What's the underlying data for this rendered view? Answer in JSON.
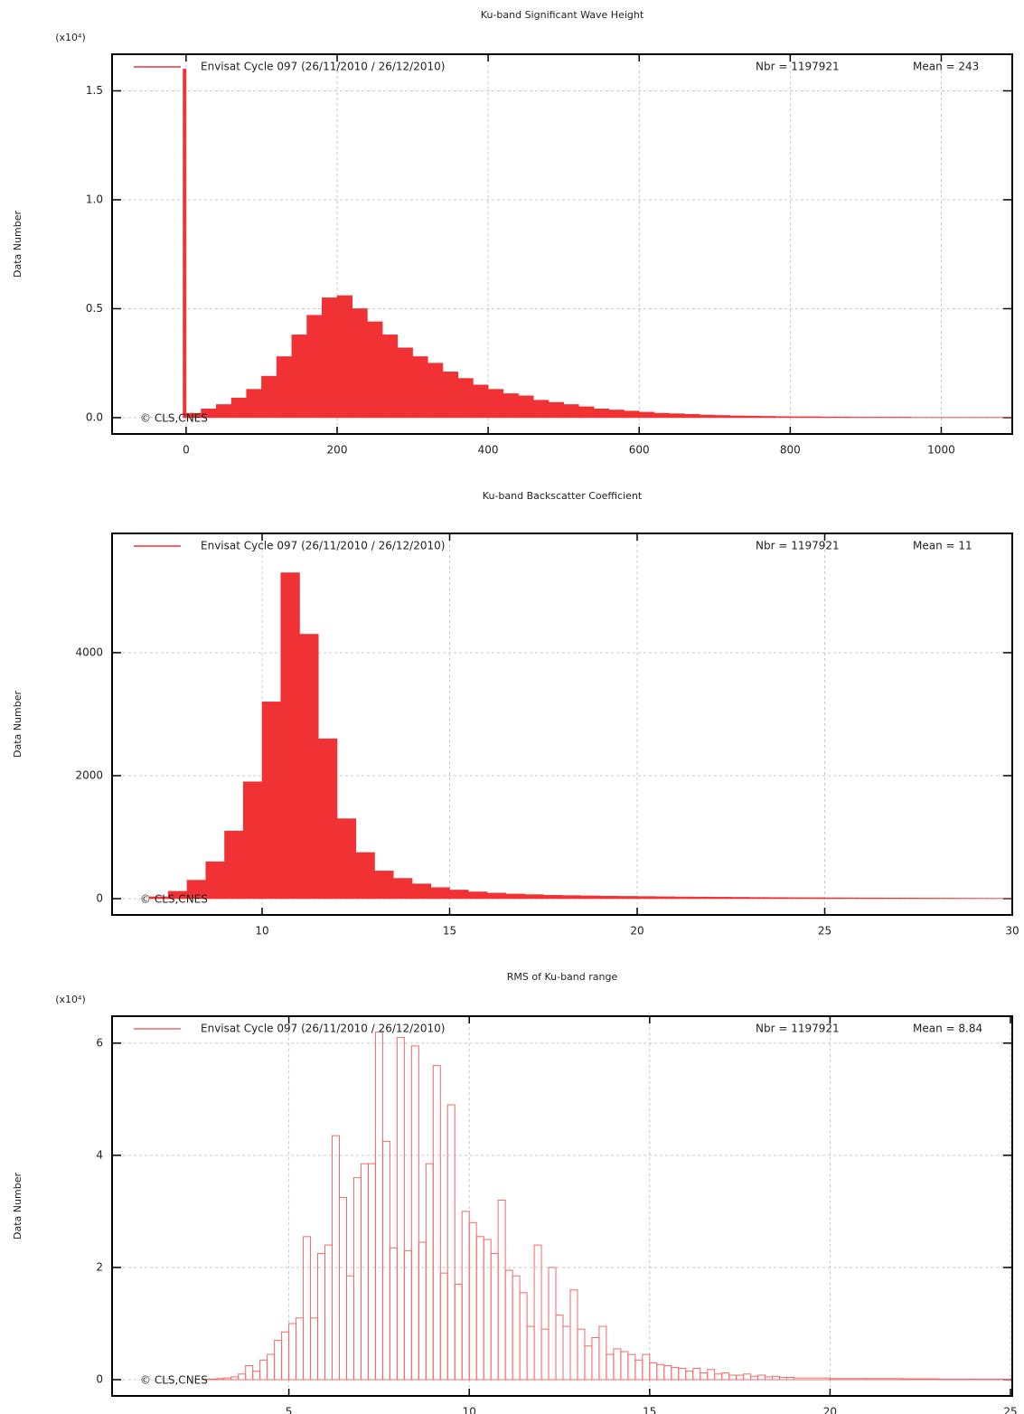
{
  "chart_data": [
    {
      "type": "histogram",
      "title": "Ku-band Significant Wave Height",
      "y_multiplier": "(x10⁴)",
      "ylabel": "Data Number",
      "stats": [
        "Nbr = 1197921",
        "Mean = 243"
      ],
      "credit": "© CLS,CNES",
      "filled": true,
      "grid": true,
      "xlim": [
        -98,
        1094
      ],
      "ylim": [
        -0.075,
        1.668
      ],
      "xticks": [
        0,
        200,
        400,
        600,
        800,
        1000
      ],
      "yticks": [
        {
          "value": 0,
          "label": "0.0"
        },
        0.5,
        {
          "value": 1,
          "label": "1.0"
        },
        1.5
      ],
      "bins": [
        -4,
        0,
        20,
        40,
        60,
        80,
        100,
        120,
        140,
        160,
        180,
        200,
        220,
        240,
        260,
        280,
        300,
        320,
        340,
        360,
        380,
        400,
        420,
        440,
        460,
        480,
        500,
        520,
        540,
        560,
        580,
        600,
        620,
        640,
        660,
        680,
        700,
        720,
        740,
        760,
        780,
        800,
        820,
        840,
        860,
        880,
        900,
        920,
        940,
        960,
        980,
        1000,
        1020,
        1040,
        1060,
        1080,
        1100
      ],
      "series": [
        {
          "name": "Envisat Cycle 097 (26/11/2010 / 26/12/2010)",
          "color": "#f03235",
          "values": [
            1.6,
            0.02,
            0.04,
            0.06,
            0.09,
            0.13,
            0.19,
            0.28,
            0.38,
            0.47,
            0.55,
            0.56,
            0.5,
            0.44,
            0.38,
            0.32,
            0.28,
            0.25,
            0.21,
            0.18,
            0.15,
            0.13,
            0.11,
            0.1,
            0.08,
            0.07,
            0.06,
            0.05,
            0.04,
            0.035,
            0.03,
            0.025,
            0.02,
            0.018,
            0.015,
            0.012,
            0.01,
            0.008,
            0.007,
            0.006,
            0.005,
            0.004,
            0.004,
            0.003,
            0.003,
            0.002,
            0.002,
            0.002,
            0.002,
            0.001,
            0.001,
            0.001,
            0.001,
            0.001,
            0.001,
            0.001
          ]
        }
      ]
    },
    {
      "type": "histogram",
      "title": "Ku-band Backscatter Coefficient",
      "ylabel": "Data Number",
      "stats": [
        "Nbr = 1197921",
        "Mean = 11"
      ],
      "credit": "© CLS,CNES",
      "filled": true,
      "grid": true,
      "xlim": [
        6,
        30
      ],
      "ylim": [
        -265,
        5940
      ],
      "xticks": [
        10,
        15,
        20,
        25,
        30
      ],
      "yticks": [
        0,
        2000,
        4000
      ],
      "bins": [
        7,
        7.5,
        8,
        8.5,
        9,
        9.5,
        10,
        10.5,
        11,
        11.5,
        12,
        12.5,
        13,
        13.5,
        14,
        14.5,
        15,
        15.5,
        16,
        16.5,
        17,
        17.5,
        18,
        18.5,
        19,
        19.5,
        20,
        20.5,
        21,
        21.5,
        22,
        22.5,
        23,
        23.5,
        24,
        24.5,
        25,
        25.5,
        26,
        26.5,
        27,
        27.5,
        28,
        28.5,
        29,
        29.5,
        30
      ],
      "series": [
        {
          "name": "Envisat Cycle 097 (26/11/2010 / 26/12/2010)",
          "color": "#f03235",
          "values": [
            30,
            120,
            300,
            600,
            1100,
            1900,
            3200,
            5300,
            4300,
            2600,
            1300,
            750,
            450,
            330,
            240,
            180,
            140,
            110,
            90,
            75,
            65,
            55,
            50,
            45,
            40,
            37,
            34,
            31,
            28,
            26,
            24,
            22,
            20,
            18,
            16,
            15,
            13,
            12,
            11,
            10,
            9,
            8,
            7,
            6,
            5,
            4
          ]
        }
      ]
    },
    {
      "type": "histogram",
      "title": "RMS of Ku-band range",
      "y_multiplier": "(x10⁴)",
      "ylabel": "Data Number",
      "stats": [
        "Nbr = 1197921",
        "Mean = 8.84"
      ],
      "credit": "© CLS,CNES",
      "filled": false,
      "grid": true,
      "xlim": [
        0.1,
        25.05
      ],
      "ylim": [
        -0.29,
        6.48
      ],
      "xticks": [
        5,
        10,
        15,
        20,
        25
      ],
      "yticks": [
        0,
        2,
        4,
        6
      ],
      "bins": [
        2.6,
        2.8,
        3,
        3.2,
        3.4,
        3.6,
        3.8,
        4,
        4.2,
        4.4,
        4.6,
        4.8,
        5,
        5.2,
        5.4,
        5.6,
        5.8,
        6,
        6.2,
        6.4,
        6.6,
        6.8,
        7,
        7.2,
        7.4,
        7.6,
        7.8,
        8,
        8.2,
        8.4,
        8.6,
        8.8,
        9,
        9.2,
        9.4,
        9.6,
        9.8,
        10,
        10.2,
        10.4,
        10.6,
        10.8,
        11,
        11.2,
        11.4,
        11.6,
        11.8,
        12,
        12.2,
        12.4,
        12.6,
        12.8,
        13,
        13.2,
        13.4,
        13.6,
        13.8,
        14,
        14.2,
        14.4,
        14.6,
        14.8,
        15,
        15.2,
        15.4,
        15.6,
        15.8,
        16,
        16.2,
        16.4,
        16.6,
        16.8,
        17,
        17.2,
        17.4,
        17.6,
        17.8,
        18,
        18.2,
        18.4,
        18.6,
        18.8,
        19,
        20,
        21,
        22,
        23,
        24,
        25
      ],
      "series": [
        {
          "name": "Envisat Cycle 097 (26/11/2010 / 26/12/2010)",
          "color": "#f06a6a",
          "values": [
            0.01,
            0.01,
            0.02,
            0.03,
            0.05,
            0.1,
            0.25,
            0.15,
            0.35,
            0.45,
            0.7,
            0.85,
            1.0,
            1.1,
            2.55,
            1.1,
            2.25,
            2.4,
            4.35,
            3.25,
            1.85,
            3.6,
            3.85,
            3.85,
            6.2,
            4.25,
            2.35,
            6.1,
            2.3,
            5.95,
            2.45,
            3.85,
            5.6,
            1.9,
            4.9,
            1.7,
            3.0,
            2.8,
            2.55,
            2.5,
            2.25,
            3.2,
            1.95,
            1.85,
            1.55,
            0.95,
            2.4,
            0.9,
            2.0,
            1.15,
            0.95,
            1.6,
            0.9,
            0.6,
            0.75,
            0.95,
            0.45,
            0.55,
            0.5,
            0.45,
            0.35,
            0.45,
            0.3,
            0.27,
            0.25,
            0.22,
            0.2,
            0.15,
            0.2,
            0.12,
            0.18,
            0.1,
            0.12,
            0.08,
            0.08,
            0.1,
            0.06,
            0.08,
            0.05,
            0.06,
            0.04,
            0.04,
            0.03,
            0.02,
            0.02,
            0.015,
            0.01,
            0.01
          ]
        }
      ]
    }
  ]
}
